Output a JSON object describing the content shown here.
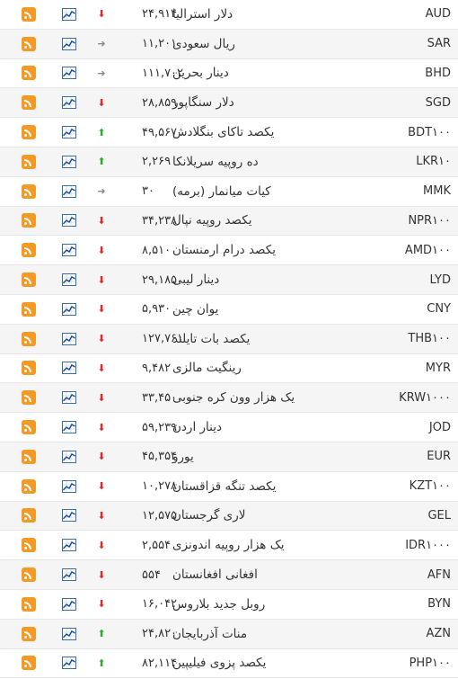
{
  "rows": [
    {
      "code": "AUD",
      "name": "دلار استرالیا",
      "price": "۲۴,۹۱۴",
      "trend": "down"
    },
    {
      "code": "SAR",
      "name": "ریال سعودی",
      "price": "۱۱,۲۰۱",
      "trend": "flat"
    },
    {
      "code": "BHD",
      "name": "دینار بحرین",
      "price": "۱۱۱,۷۰۲",
      "trend": "flat"
    },
    {
      "code": "SGD",
      "name": "دلار سنگاپور",
      "price": "۲۸,۸۵۹",
      "trend": "down"
    },
    {
      "code": "BDT۱۰۰",
      "name": "یکصد تاکای بنگلادش",
      "price": "۴۹,۵۶۷",
      "trend": "up"
    },
    {
      "code": "LKR۱۰",
      "name": "ده روپیه سریلانکا",
      "price": "۲,۲۶۹",
      "trend": "up"
    },
    {
      "code": "MMK",
      "name": "کیات میانمار (برمه)",
      "price": "۳۰",
      "trend": "flat"
    },
    {
      "code": "NPR۱۰۰",
      "name": "یکصد روپیه نپال",
      "price": "۳۴,۲۳۸",
      "trend": "down"
    },
    {
      "code": "AMD۱۰۰",
      "name": "یکصد درام ارمنستان",
      "price": "۸,۵۱۰",
      "trend": "down"
    },
    {
      "code": "LYD",
      "name": "دینار لیبی",
      "price": "۲۹,۱۸۵",
      "trend": "down"
    },
    {
      "code": "CNY",
      "name": "یوان چین",
      "price": "۵,۹۳۰",
      "trend": "down"
    },
    {
      "code": "THB۱۰۰",
      "name": "یکصد بات تایلند",
      "price": "۱۲۷,۷۶۱",
      "trend": "down"
    },
    {
      "code": "MYR",
      "name": "رینگیت مالزی",
      "price": "۹,۴۸۲",
      "trend": "down"
    },
    {
      "code": "KRW۱۰۰۰",
      "name": "یک هزار وون کره جنوبی",
      "price": "۳۳,۴۵۰",
      "trend": "down"
    },
    {
      "code": "JOD",
      "name": "دینار اردن",
      "price": "۵۹,۲۳۹",
      "trend": "down"
    },
    {
      "code": "EUR",
      "name": "یورو",
      "price": "۴۵,۳۵۴",
      "trend": "down"
    },
    {
      "code": "KZT۱۰۰",
      "name": "یکصد تنگه قزاقستان",
      "price": "۱۰,۲۷۸",
      "trend": "down"
    },
    {
      "code": "GEL",
      "name": "لاری گرجستان",
      "price": "۱۲,۵۷۵",
      "trend": "down"
    },
    {
      "code": "IDR۱۰۰۰",
      "name": "یک هزار روپیه اندونزی",
      "price": "۲,۵۵۴",
      "trend": "down"
    },
    {
      "code": "AFN",
      "name": "افغانی افغانستان",
      "price": "۵۵۴",
      "trend": "down"
    },
    {
      "code": "BYN",
      "name": "روبل جدید بلاروس",
      "price": "۱۶,۰۴۲",
      "trend": "down"
    },
    {
      "code": "AZN",
      "name": "منات آذربایجان",
      "price": "۲۴,۸۲۰",
      "trend": "up"
    },
    {
      "code": "PHP۱۰۰",
      "name": "یکصد پزوی فیلیپین",
      "price": "۸۲,۱۱۴",
      "trend": "up"
    }
  ],
  "icons": {
    "rss": "rss-feed-icon",
    "chart": "line-chart-icon",
    "up": "arrow-up-icon",
    "down": "arrow-down-icon",
    "flat": "arrow-right-icon"
  },
  "colors": {
    "rss": "#f39a26",
    "up": "#2eaa2e",
    "down": "#d32f2f",
    "flat": "#888888",
    "alt_row": "#f5f5f5"
  }
}
